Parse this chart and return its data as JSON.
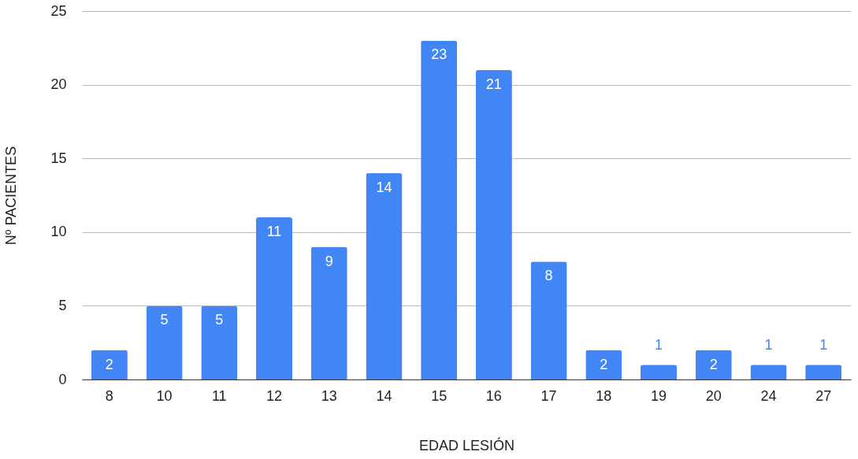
{
  "chart_data": {
    "type": "bar",
    "xlabel": "EDAD LESIÓN",
    "ylabel": "Nº PACIENTES",
    "categories": [
      "8",
      "10",
      "11",
      "12",
      "13",
      "14",
      "15",
      "16",
      "17",
      "18",
      "19",
      "20",
      "24",
      "27"
    ],
    "values": [
      2,
      5,
      5,
      11,
      9,
      14,
      23,
      21,
      8,
      2,
      1,
      2,
      1,
      1
    ],
    "color": "#4285f4",
    "ylim": [
      0,
      25
    ],
    "yticks": [
      0,
      5,
      10,
      15,
      20,
      25
    ],
    "grid": "y",
    "data_labels": true
  }
}
